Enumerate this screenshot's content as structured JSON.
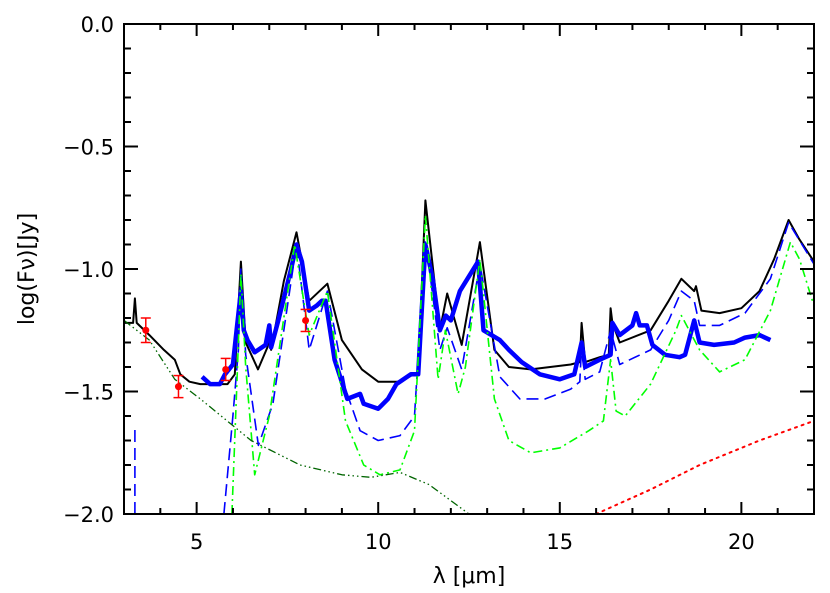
{
  "chart_data": {
    "type": "line",
    "title": "",
    "xlabel": "λ [μm]",
    "ylabel": "log(Fν)[Jy]",
    "xlim": [
      3,
      22
    ],
    "ylim": [
      -2.0,
      0.0
    ],
    "xticks": [
      5,
      10,
      15,
      20
    ],
    "xtick_labels": [
      "5",
      "10",
      "15",
      "20"
    ],
    "yticks": [
      0.0,
      -0.5,
      -1.0,
      -1.5,
      -2.0
    ],
    "ytick_labels": [
      "0.0",
      "−0.5",
      "−1.0",
      "−1.5",
      "−2.0"
    ],
    "x_minor_step": 1,
    "y_minor_step": 0.1,
    "grid": false,
    "legend": "none",
    "series": [
      {
        "style": "solid",
        "color": "#000000",
        "x": [
          3.0,
          3.25,
          3.3,
          3.35,
          3.7,
          4.1,
          4.4,
          4.55,
          4.8,
          5.1,
          5.5,
          5.85,
          6.05,
          6.22,
          6.35,
          6.69,
          6.95,
          7.0,
          7.05,
          7.4,
          7.75,
          8.1,
          8.6,
          9.0,
          9.55,
          10.0,
          10.6,
          11.1,
          11.3,
          11.7,
          11.9,
          12.3,
          12.8,
          13.2,
          13.6,
          14.2,
          15.3,
          15.55,
          15.6,
          15.7,
          16.1,
          16.35,
          16.4,
          16.45,
          16.65,
          17.5,
          18.0,
          18.35,
          18.7,
          18.75,
          18.9,
          19.4,
          20.0,
          20.5,
          20.9,
          21.3,
          21.6,
          22.0
        ],
        "y": [
          -1.22,
          -1.22,
          -1.12,
          -1.22,
          -1.27,
          -1.33,
          -1.37,
          -1.43,
          -1.46,
          -1.47,
          -1.47,
          -1.47,
          -1.43,
          -0.97,
          -1.3,
          -1.41,
          -1.32,
          -1.28,
          -1.33,
          -1.05,
          -0.85,
          -1.13,
          -1.06,
          -1.29,
          -1.41,
          -1.46,
          -1.46,
          -1.42,
          -0.72,
          -1.25,
          -1.1,
          -1.31,
          -0.89,
          -1.33,
          -1.4,
          -1.41,
          -1.39,
          -1.38,
          -1.22,
          -1.38,
          -1.36,
          -1.35,
          -1.16,
          -1.22,
          -1.3,
          -1.25,
          -1.13,
          -1.04,
          -1.09,
          -1.07,
          -1.17,
          -1.18,
          -1.16,
          -1.09,
          -0.96,
          -0.8,
          -0.88,
          -0.97
        ]
      },
      {
        "style": "thick",
        "color": "#0000ff",
        "x": [
          5.15,
          5.37,
          5.64,
          5.78,
          6.0,
          6.1,
          6.22,
          6.3,
          6.4,
          6.6,
          6.9,
          7.0,
          7.05,
          7.25,
          7.6,
          7.75,
          7.9,
          8.1,
          8.3,
          8.45,
          8.55,
          8.8,
          9.15,
          9.5,
          9.6,
          10.0,
          10.27,
          10.5,
          10.9,
          11.1,
          11.3,
          11.5,
          11.7,
          11.86,
          12.0,
          12.25,
          12.75,
          12.9,
          13.35,
          13.6,
          13.95,
          14.45,
          15.0,
          15.4,
          15.6,
          15.7,
          16.1,
          16.4,
          16.45,
          16.65,
          17.0,
          17.1,
          17.2,
          17.4,
          17.55,
          17.9,
          18.3,
          18.45,
          18.7,
          18.85,
          19.25,
          19.8,
          20.1,
          20.5,
          20.8
        ],
        "y": [
          -1.44,
          -1.47,
          -1.47,
          -1.43,
          -1.39,
          -1.25,
          -1.09,
          -1.25,
          -1.29,
          -1.34,
          -1.31,
          -1.23,
          -1.32,
          -1.21,
          -1.0,
          -0.9,
          -0.97,
          -1.17,
          -1.15,
          -1.13,
          -1.13,
          -1.37,
          -1.53,
          -1.51,
          -1.55,
          -1.57,
          -1.53,
          -1.47,
          -1.43,
          -1.43,
          -0.9,
          -1.04,
          -1.25,
          -1.19,
          -1.21,
          -1.09,
          -0.97,
          -1.25,
          -1.29,
          -1.33,
          -1.38,
          -1.43,
          -1.45,
          -1.43,
          -1.3,
          -1.4,
          -1.37,
          -1.35,
          -1.22,
          -1.27,
          -1.23,
          -1.18,
          -1.23,
          -1.23,
          -1.31,
          -1.35,
          -1.36,
          -1.35,
          -1.21,
          -1.3,
          -1.31,
          -1.3,
          -1.28,
          -1.27,
          -1.29
        ]
      },
      {
        "style": "dashed",
        "color": "#0000ff",
        "x": [
          3.3,
          3.3,
          null,
          5.75,
          6.0,
          6.15,
          6.22,
          6.35,
          6.7,
          7.1,
          7.6,
          7.75,
          8.1,
          8.6,
          9.1,
          9.5,
          10.0,
          10.6,
          11.0,
          11.3,
          11.7,
          11.9,
          12.3,
          12.8,
          13.35,
          13.9,
          14.6,
          15.3,
          15.55,
          15.6,
          15.7,
          16.1,
          16.4,
          16.65,
          17.5,
          18.0,
          18.35,
          18.7,
          18.85,
          19.4,
          20.1,
          20.8,
          21.3,
          22.0
        ],
        "y": [
          -2.0,
          -1.65,
          null,
          -2.0,
          -1.6,
          -1.33,
          -1.0,
          -1.35,
          -1.72,
          -1.55,
          -1.05,
          -0.9,
          -1.33,
          -1.09,
          -1.49,
          -1.66,
          -1.7,
          -1.68,
          -1.6,
          -0.88,
          -1.33,
          -1.24,
          -1.41,
          -0.98,
          -1.44,
          -1.53,
          -1.53,
          -1.49,
          -1.46,
          -1.31,
          -1.45,
          -1.42,
          -1.25,
          -1.39,
          -1.33,
          -1.21,
          -1.09,
          -1.13,
          -1.23,
          -1.23,
          -1.18,
          -1.04,
          -0.81,
          -0.98
        ]
      },
      {
        "style": "dashdot",
        "color": "#00ff00",
        "x": [
          5.97,
          6.1,
          6.22,
          6.35,
          6.6,
          7.0,
          7.4,
          7.7,
          8.1,
          8.6,
          9.1,
          9.6,
          10.05,
          10.6,
          11.0,
          11.3,
          11.65,
          11.85,
          12.2,
          12.4,
          12.8,
          13.2,
          13.6,
          14.2,
          15.0,
          15.8,
          16.2,
          16.4,
          16.55,
          16.8,
          17.5,
          18.2,
          18.35,
          18.85,
          19.4,
          20.1,
          20.8,
          21.35,
          21.6,
          22.0
        ],
        "y": [
          -2.0,
          -1.5,
          -1.02,
          -1.4,
          -1.84,
          -1.6,
          -1.2,
          -0.9,
          -1.27,
          -1.09,
          -1.62,
          -1.8,
          -1.84,
          -1.82,
          -1.66,
          -0.78,
          -1.45,
          -1.25,
          -1.51,
          -1.4,
          -0.96,
          -1.53,
          -1.7,
          -1.75,
          -1.73,
          -1.66,
          -1.62,
          -1.37,
          -1.58,
          -1.6,
          -1.47,
          -1.25,
          -1.19,
          -1.33,
          -1.42,
          -1.37,
          -1.17,
          -0.89,
          -0.96,
          -1.15
        ]
      },
      {
        "style": "dashdotdot",
        "color": "#006400",
        "x": [
          3.0,
          3.7,
          4.4,
          5.1,
          6.5,
          7.85,
          9.0,
          9.8,
          10.6,
          11.4,
          12.5
        ],
        "y": [
          -1.21,
          -1.29,
          -1.45,
          -1.53,
          -1.7,
          -1.8,
          -1.84,
          -1.85,
          -1.83,
          -1.88,
          -2.0
        ]
      },
      {
        "style": "dotted",
        "color": "#ff0000",
        "x": [
          16.0,
          17.5,
          18.85,
          20.5,
          22.0
        ],
        "y": [
          -2.0,
          -1.9,
          -1.8,
          -1.7,
          -1.62
        ]
      }
    ],
    "photometry": {
      "color": "#ff0000",
      "x": [
        3.6,
        4.5,
        5.8,
        8.0
      ],
      "y": [
        -1.25,
        -1.48,
        -1.41,
        -1.21
      ],
      "yerr": [
        0.05,
        0.045,
        0.045,
        0.045
      ]
    }
  }
}
